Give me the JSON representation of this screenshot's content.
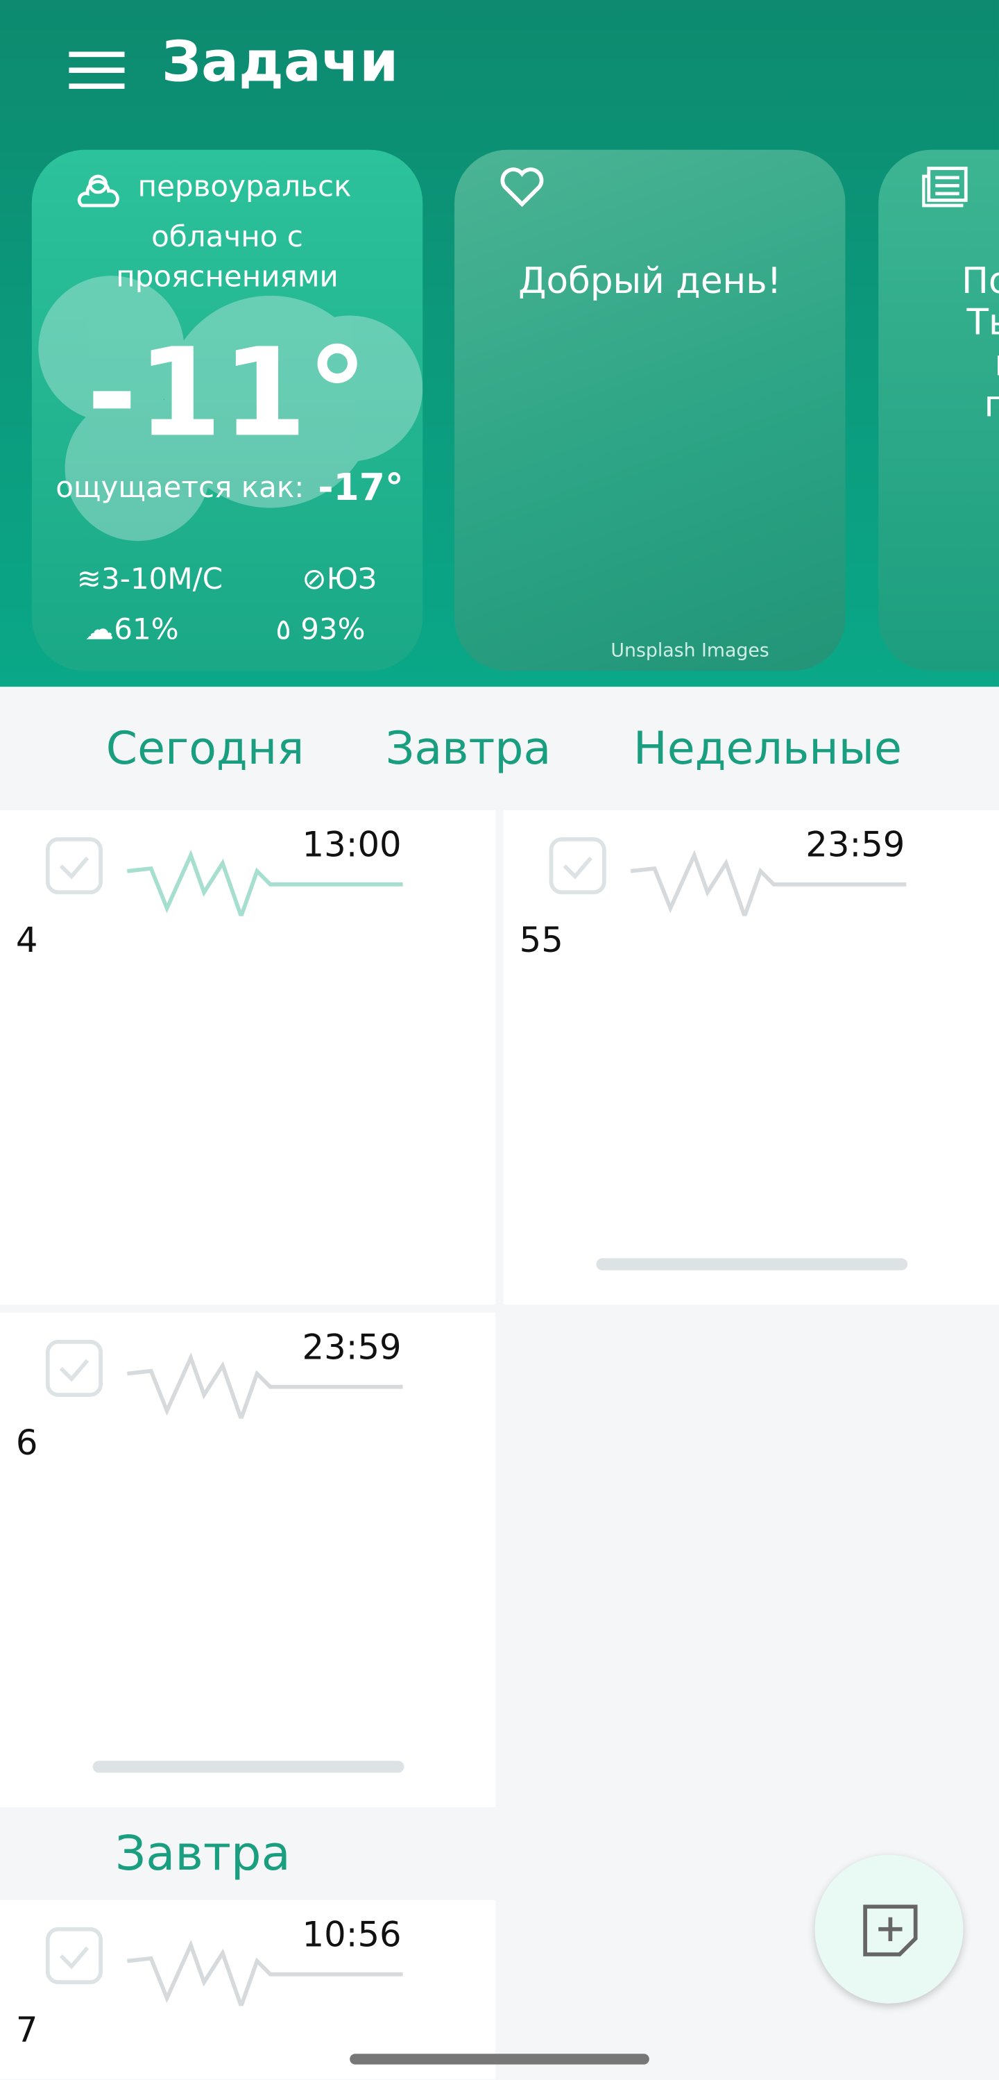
{
  "header": {
    "title": "Задачи"
  },
  "weather": {
    "city": "первоуральск",
    "condition": "облачно с прояснениями",
    "temperature": "-11°",
    "feels_label": "ощущается как:",
    "feels": "-17°",
    "wind": "3-10М/С",
    "direction": "ЮЗ",
    "clouds": "61%",
    "humidity": "93%"
  },
  "greeting": {
    "text": "Добрый день!",
    "credit": "Unsplash Images"
  },
  "news": {
    "lines": [
      "Позда",
      "Ты те",
      "мо",
      "при"
    ]
  },
  "tabs": [
    "Сегодня",
    "Завтра",
    "Недельные"
  ],
  "tasks": [
    {
      "time": "13:00",
      "text": "4"
    },
    {
      "time": "23:59",
      "text": "55"
    },
    {
      "time": "23:59",
      "text": "6"
    }
  ],
  "section": {
    "title": "Завтра",
    "tasks": [
      {
        "time": "10:56",
        "text": "7"
      }
    ]
  }
}
